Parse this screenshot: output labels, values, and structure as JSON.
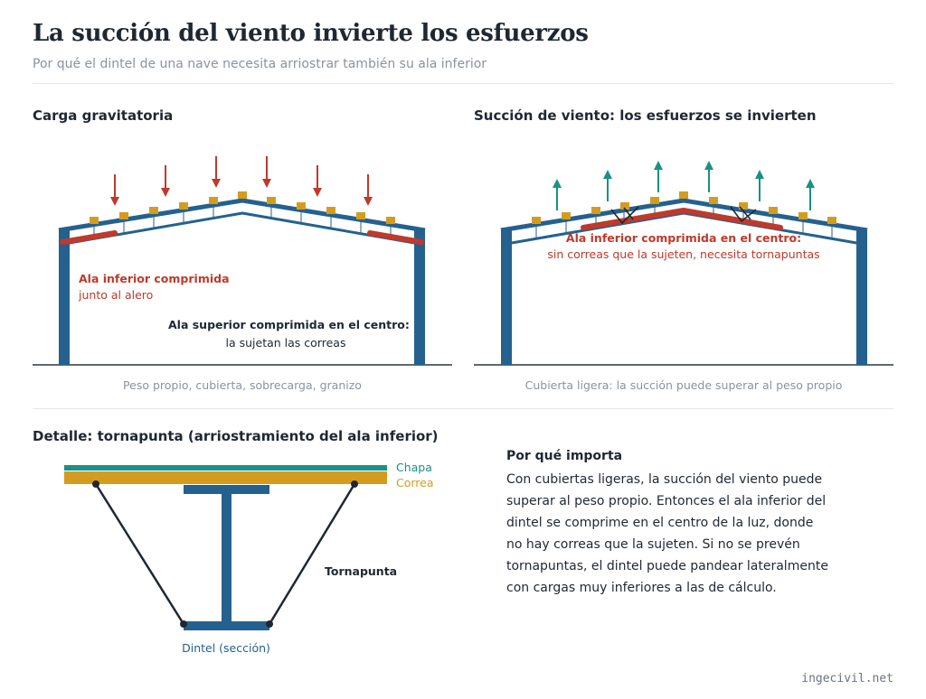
{
  "header": {
    "title": "La succión del viento invierte los esfuerzos",
    "subtitle": "Por qué el dintel de una nave necesita arriostrar también su ala inferior"
  },
  "panel_gravity": {
    "title": "Carga gravitatoria",
    "label_bottom_flange": "Ala inferior comprimida",
    "label_bottom_flange_note": "junto al alero",
    "label_top_flange": "Ala superior comprimida en el centro:",
    "label_top_flange_note": "la sujetan las correas",
    "caption": "Peso propio, cubierta, sobrecarga, granizo"
  },
  "panel_wind": {
    "title": "Succión de viento: los esfuerzos se invierten",
    "label_bottom_flange": "Ala inferior comprimida en el centro:",
    "label_bottom_flange_note": "sin correas que la sujeten, necesita tornapuntas",
    "caption": "Cubierta ligera: la succión puede superar al peso propio"
  },
  "detail": {
    "title": "Detalle: tornapunta (arriostramiento del ala inferior)",
    "label_sheet": "Chapa",
    "label_purlin": "Correa",
    "label_brace": "Tornapunta",
    "label_rafter": "Dintel (sección)"
  },
  "why": {
    "title": "Por qué importa",
    "lines": [
      "Con cubiertas ligeras, la succión del viento puede",
      "superar al peso propio. Entonces el ala inferior del",
      "dintel se comprime en el centro de la luz, donde",
      "no hay correas que la sujeten. Si no se prevén",
      "tornapuntas, el dintel puede pandear lateralmente",
      "con cargas muy inferiores a las de cálculo."
    ]
  },
  "footer": {
    "site": "ingecivil.net"
  },
  "colors": {
    "steel": "#24618f",
    "compression": "#c0392b",
    "purlin": "#d49c1f",
    "wind": "#1a9183",
    "brace": "#1f2733"
  }
}
